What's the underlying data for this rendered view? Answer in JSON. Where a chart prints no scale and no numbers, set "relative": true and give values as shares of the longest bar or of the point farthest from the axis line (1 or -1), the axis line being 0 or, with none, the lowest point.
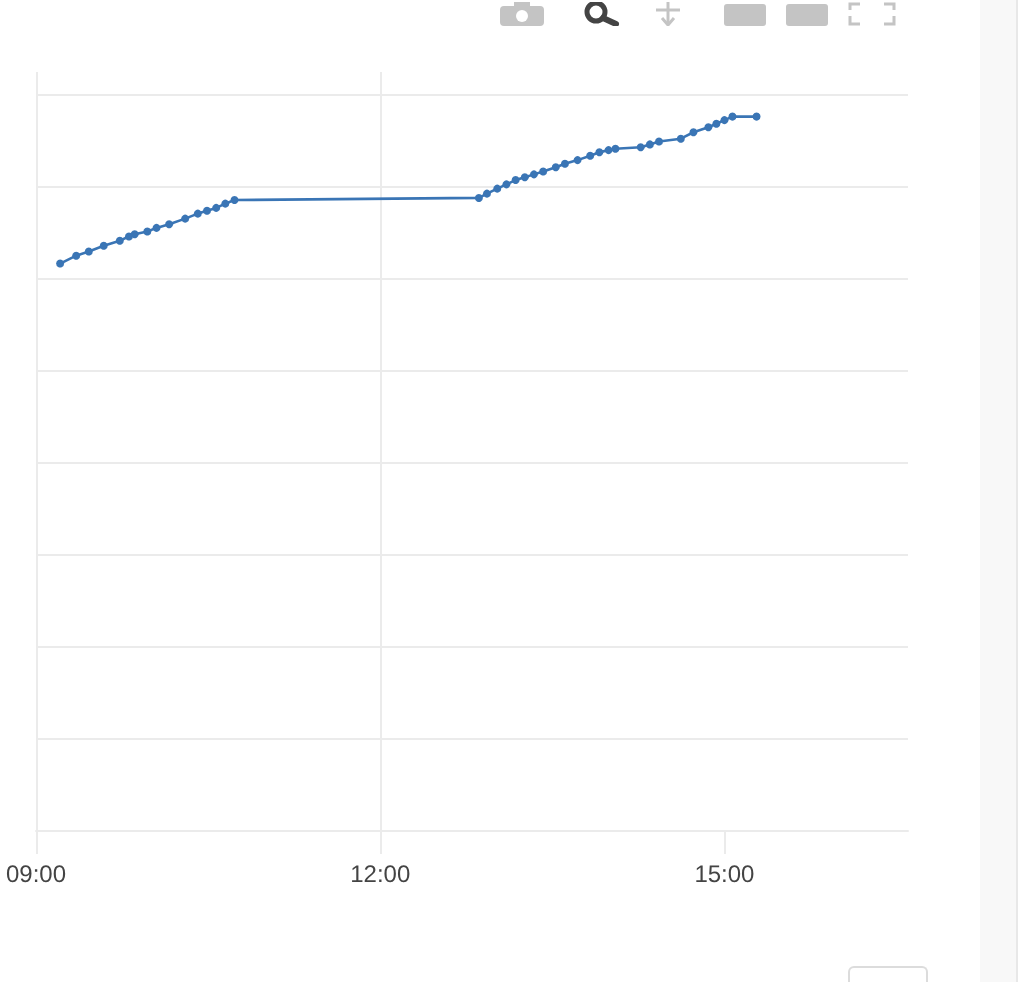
{
  "chart_data": {
    "type": "line",
    "relative": true,
    "x": [
      9.21,
      9.35,
      9.46,
      9.59,
      9.73,
      9.81,
      9.86,
      9.97,
      10.05,
      10.16,
      10.3,
      10.41,
      10.49,
      10.57,
      10.65,
      10.73,
      12.86,
      12.93,
      13.02,
      13.1,
      13.18,
      13.26,
      13.34,
      13.42,
      13.53,
      13.61,
      13.72,
      13.83,
      13.91,
      13.99,
      14.05,
      14.27,
      14.35,
      14.43,
      14.62,
      14.73,
      14.86,
      14.93,
      15,
      15.07,
      15.28
    ],
    "values": [
      0.794,
      0.805,
      0.811,
      0.819,
      0.826,
      0.832,
      0.835,
      0.839,
      0.844,
      0.849,
      0.857,
      0.864,
      0.868,
      0.872,
      0.878,
      0.883,
      0.886,
      0.892,
      0.899,
      0.905,
      0.911,
      0.915,
      0.919,
      0.923,
      0.929,
      0.934,
      0.939,
      0.945,
      0.95,
      0.953,
      0.955,
      0.957,
      0.961,
      0.965,
      0.969,
      0.978,
      0.985,
      0.99,
      0.995,
      1.0,
      1.0
    ],
    "color": "#3a75b5",
    "xlim": [
      9,
      16.6
    ],
    "xticks": [
      {
        "value": 9,
        "label": "09:00"
      },
      {
        "value": 12,
        "label": "12:00"
      },
      {
        "value": 15,
        "label": "15:00"
      }
    ],
    "grid": true,
    "marker": "circle",
    "line_style": "solid",
    "tick_labels": "x"
  }
}
